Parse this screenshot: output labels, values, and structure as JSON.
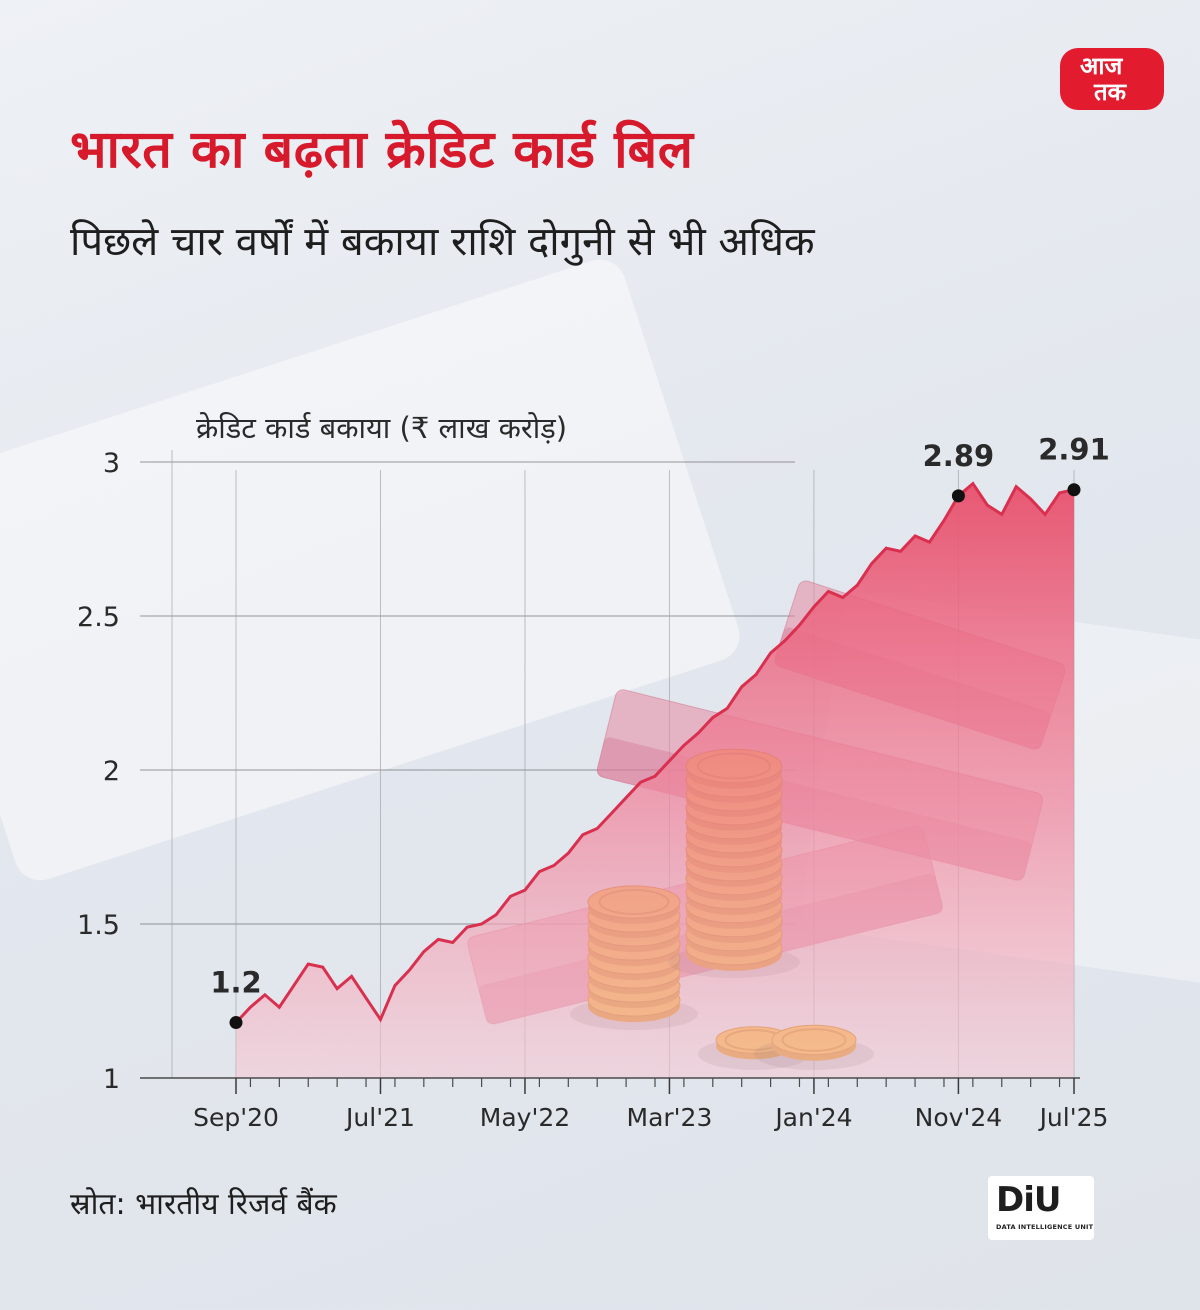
{
  "title": "भारत का बढ़ता क्रेडिट कार्ड बिल",
  "subtitle": "पिछले चार वर्षों में बकाया राशि दोगुनी से भी अधिक",
  "logo": {
    "line1": "आज",
    "line2": "तक",
    "color": "#e21b2f"
  },
  "source": "स्रोत: भारतीय रिजर्व बैंक",
  "diu": {
    "mark": "DiU",
    "subtitle": "DATA INTELLIGENCE UNIT"
  },
  "colors": {
    "accent": "#d7192c",
    "line": "#d9304f",
    "area": "#ec6d85"
  },
  "chart_data": {
    "type": "area",
    "ylabel": "क्रेडिट कार्ड बकाया (₹ लाख करोड़)",
    "ylim": [
      1,
      3
    ],
    "yticks": [
      "1",
      "1.5",
      "2",
      "2.5",
      "3"
    ],
    "xticks": [
      "Sep'20",
      "Jul'21",
      "May'22",
      "Mar'23",
      "Jan'24",
      "Nov'24",
      "Jul'25"
    ],
    "grid": true,
    "series": [
      {
        "x": [
          "Sep'20",
          "Oct'20",
          "Nov'20",
          "Dec'20",
          "Jan'21",
          "Feb'21",
          "Mar'21",
          "Apr'21",
          "May'21",
          "Jun'21",
          "Jul'21",
          "Aug'21",
          "Sep'21",
          "Oct'21",
          "Nov'21",
          "Dec'21",
          "Jan'22",
          "Feb'22",
          "Mar'22",
          "Apr'22",
          "May'22",
          "Jun'22",
          "Jul'22",
          "Aug'22",
          "Sep'22",
          "Oct'22",
          "Nov'22",
          "Dec'22",
          "Jan'23",
          "Feb'23",
          "Mar'23",
          "Apr'23",
          "May'23",
          "Jun'23",
          "Jul'23",
          "Aug'23",
          "Sep'23",
          "Oct'23",
          "Nov'23",
          "Dec'23",
          "Jan'24",
          "Feb'24",
          "Mar'24",
          "Apr'24",
          "May'24",
          "Jun'24",
          "Jul'24",
          "Aug'24",
          "Sep'24",
          "Oct'24",
          "Nov'24",
          "Dec'24",
          "Jan'25",
          "Feb'25",
          "Mar'25",
          "Apr'25",
          "May'25",
          "Jun'25",
          "Jul'25"
        ],
        "values": [
          1.18,
          1.23,
          1.27,
          1.23,
          1.3,
          1.37,
          1.36,
          1.29,
          1.33,
          1.26,
          1.19,
          1.3,
          1.35,
          1.41,
          1.45,
          1.44,
          1.49,
          1.5,
          1.53,
          1.59,
          1.61,
          1.67,
          1.69,
          1.73,
          1.79,
          1.81,
          1.86,
          1.91,
          1.96,
          1.98,
          2.03,
          2.08,
          2.12,
          2.17,
          2.2,
          2.27,
          2.31,
          2.38,
          2.42,
          2.47,
          2.53,
          2.58,
          2.56,
          2.6,
          2.67,
          2.72,
          2.71,
          2.76,
          2.74,
          2.81,
          2.89,
          2.93,
          2.86,
          2.83,
          2.92,
          2.88,
          2.83,
          2.9,
          2.91
        ]
      }
    ],
    "annotations": [
      {
        "x": "Sep'20",
        "value": 1.18,
        "label": "1.2"
      },
      {
        "x": "Nov'24",
        "value": 2.89,
        "label": "2.89"
      },
      {
        "x": "Jul'25",
        "value": 2.91,
        "label": "2.91"
      }
    ]
  }
}
